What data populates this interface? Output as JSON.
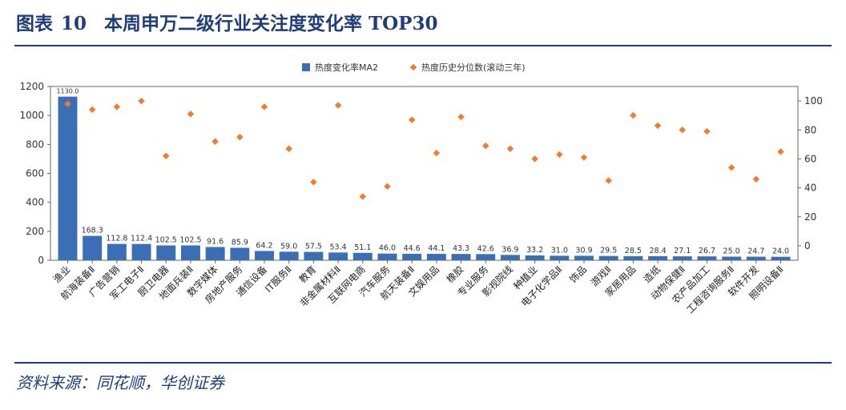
{
  "figure": {
    "label": "图表",
    "number": "10",
    "title": "本周申万二级行业关注度变化率 TOP30",
    "source": "资料来源：同花顺，华创证券"
  },
  "chart_data": {
    "type": "bar",
    "categories": [
      "渔业",
      "航海装备Ⅱ",
      "广告营销",
      "军工电子Ⅱ",
      "厨卫电器",
      "地面兵装Ⅱ",
      "数字媒体",
      "房地产服务",
      "通信设备",
      "IT服务Ⅱ",
      "教育",
      "非金属材料Ⅱ",
      "互联网电商",
      "汽车服务",
      "航天装备Ⅱ",
      "文娱用品",
      "橡胶",
      "专业服务",
      "影视院线",
      "种植业",
      "电子化学品Ⅱ",
      "饰品",
      "游戏Ⅱ",
      "家居用品",
      "造纸",
      "动物保健Ⅱ",
      "农产品加工",
      "工程咨询服务Ⅱ",
      "软件开发",
      "照明设备Ⅱ"
    ],
    "series": [
      {
        "name": "热度变化率MA2",
        "axis": "left",
        "type": "bar",
        "color": "#3a6fb5",
        "values": [
          1130.0,
          168.3,
          112.8,
          112.4,
          102.5,
          102.5,
          91.6,
          85.9,
          64.2,
          59.0,
          57.5,
          53.4,
          51.1,
          46.0,
          44.6,
          44.1,
          43.3,
          42.6,
          36.9,
          33.2,
          31.0,
          30.9,
          29.5,
          28.5,
          28.4,
          27.1,
          26.7,
          25.0,
          24.7,
          24.0
        ],
        "labels": [
          "1130.0",
          "168.3",
          "112.8",
          "112.4",
          "102.5",
          "102.5",
          "91.6",
          "85.9",
          "64.2",
          "59.0",
          "57.5",
          "53.4",
          "51.1",
          "46.0",
          "44.6",
          "44.1",
          "43.3",
          "42.6",
          "36.9",
          "33.2",
          "31.0",
          "30.9",
          "29.5",
          "28.5",
          "28.4",
          "27.1",
          "26.7",
          "25.0",
          "24.7",
          "24.0"
        ]
      },
      {
        "name": "热度历史分位数(滚动三年)",
        "axis": "right",
        "type": "scatter",
        "color": "#ed7d31",
        "values": [
          98,
          94,
          96,
          100,
          62,
          91,
          72,
          75,
          96,
          67,
          44,
          97,
          34,
          41,
          87,
          64,
          89,
          69,
          67,
          60,
          63,
          61,
          45,
          90,
          83,
          80,
          79,
          54,
          46,
          65
        ]
      }
    ],
    "y_left": {
      "min": 0,
      "max": 1200,
      "ticks": [
        "0",
        "200",
        "400",
        "600",
        "800",
        "1000",
        "1200"
      ]
    },
    "y_right": {
      "min": -10,
      "max": 110,
      "ticks": [
        "0",
        "20",
        "40",
        "60",
        "80",
        "100"
      ]
    },
    "legend_position": "top-center",
    "grid": false
  }
}
